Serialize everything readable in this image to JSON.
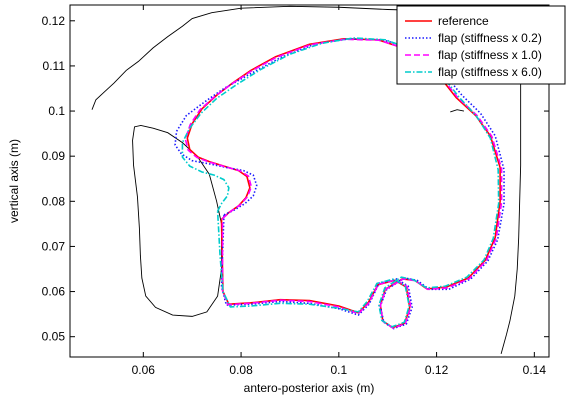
{
  "chart_data": {
    "type": "line",
    "xlabel": "antero-posterior axis (m)",
    "ylabel": "vertical axis (m)",
    "xlim": [
      0.045,
      0.143
    ],
    "ylim": [
      0.0455,
      0.1235
    ],
    "xticks": [
      0.06,
      0.08,
      0.1,
      0.12,
      0.14
    ],
    "yticks": [
      0.05,
      0.06,
      0.07,
      0.08,
      0.09,
      0.1,
      0.11,
      0.12
    ],
    "xtick_labels": [
      "0.06",
      "0.08",
      "0.1",
      "0.12",
      "0.14"
    ],
    "ytick_labels": [
      "0.05",
      "0.06",
      "0.07",
      "0.08",
      "0.09",
      "0.1",
      "0.11",
      "0.12"
    ],
    "grid": false,
    "legend_position": "top-right",
    "boundary": {
      "color": "#000000",
      "outer": [
        [
          0.0495,
          0.1003
        ],
        [
          0.0503,
          0.1025
        ],
        [
          0.052,
          0.1042
        ],
        [
          0.054,
          0.1062
        ],
        [
          0.0565,
          0.109
        ],
        [
          0.059,
          0.111
        ],
        [
          0.062,
          0.114
        ],
        [
          0.065,
          0.1165
        ],
        [
          0.068,
          0.1188
        ],
        [
          0.07,
          0.1205
        ],
        [
          0.074,
          0.1218
        ],
        [
          0.08,
          0.1228
        ],
        [
          0.09,
          0.1232
        ],
        [
          0.1,
          0.123
        ],
        [
          0.11,
          0.1225
        ],
        [
          0.12,
          0.1222
        ],
        [
          0.124,
          0.122
        ],
        [
          0.1255,
          0.1205
        ],
        [
          0.127,
          0.1175
        ],
        [
          0.1285,
          0.1145
        ],
        [
          0.131,
          0.1125
        ],
        [
          0.134,
          0.1115
        ],
        [
          0.1372,
          0.1105
        ],
        [
          0.1372,
          0.104
        ],
        [
          0.1372,
          0.096
        ],
        [
          0.1372,
          0.088
        ],
        [
          0.137,
          0.08
        ],
        [
          0.1368,
          0.072
        ],
        [
          0.1365,
          0.065
        ],
        [
          0.136,
          0.059
        ],
        [
          0.135,
          0.0535
        ],
        [
          0.1343,
          0.0505
        ],
        [
          0.1332,
          0.0462
        ]
      ],
      "inner": [
        [
          0.076,
          0.075
        ],
        [
          0.075,
          0.08
        ],
        [
          0.0735,
          0.086
        ],
        [
          0.071,
          0.09
        ],
        [
          0.068,
          0.093
        ],
        [
          0.065,
          0.0952
        ],
        [
          0.062,
          0.0962
        ],
        [
          0.0595,
          0.0968
        ],
        [
          0.0582,
          0.0965
        ],
        [
          0.0578,
          0.0935
        ],
        [
          0.058,
          0.088
        ],
        [
          0.0588,
          0.081
        ],
        [
          0.0592,
          0.074
        ],
        [
          0.0594,
          0.068
        ],
        [
          0.0597,
          0.063
        ],
        [
          0.0605,
          0.059
        ],
        [
          0.0625,
          0.0565
        ],
        [
          0.066,
          0.0548
        ],
        [
          0.07,
          0.0545
        ],
        [
          0.073,
          0.0555
        ],
        [
          0.0752,
          0.059
        ],
        [
          0.076,
          0.065
        ],
        [
          0.076,
          0.07
        ],
        [
          0.076,
          0.075
        ]
      ],
      "right_step": [
        [
          0.1228,
          0.0998
        ],
        [
          0.1242,
          0.1003
        ],
        [
          0.1256,
          0.1
        ]
      ]
    },
    "series": [
      {
        "name": "reference",
        "color": "#ff0000",
        "style": "solid",
        "points": [
          [
            0.076,
            0.076
          ],
          [
            0.0775,
            0.0775
          ],
          [
            0.0795,
            0.079
          ],
          [
            0.081,
            0.0808
          ],
          [
            0.0818,
            0.083
          ],
          [
            0.0812,
            0.0855
          ],
          [
            0.0795,
            0.0868
          ],
          [
            0.0765,
            0.0878
          ],
          [
            0.0735,
            0.0888
          ],
          [
            0.0712,
            0.0898
          ],
          [
            0.0695,
            0.0915
          ],
          [
            0.069,
            0.094
          ],
          [
            0.07,
            0.0972
          ],
          [
            0.072,
            0.1005
          ],
          [
            0.075,
            0.1035
          ],
          [
            0.078,
            0.106
          ],
          [
            0.082,
            0.109
          ],
          [
            0.087,
            0.112
          ],
          [
            0.094,
            0.1148
          ],
          [
            0.101,
            0.116
          ],
          [
            0.108,
            0.1158
          ],
          [
            0.115,
            0.1133
          ],
          [
            0.12,
            0.1085
          ],
          [
            0.124,
            0.103
          ],
          [
            0.128,
            0.099
          ],
          [
            0.131,
            0.0945
          ],
          [
            0.133,
            0.0875
          ],
          [
            0.133,
            0.08
          ],
          [
            0.132,
            0.072
          ],
          [
            0.13,
            0.067
          ],
          [
            0.1265,
            0.063
          ],
          [
            0.122,
            0.061
          ],
          [
            0.118,
            0.0606
          ],
          [
            0.1155,
            0.0625
          ],
          [
            0.113,
            0.0628
          ],
          [
            0.1095,
            0.0605
          ],
          [
            0.1085,
            0.057
          ],
          [
            0.109,
            0.0535
          ],
          [
            0.111,
            0.052
          ],
          [
            0.1135,
            0.053
          ],
          [
            0.1145,
            0.0565
          ],
          [
            0.1138,
            0.061
          ],
          [
            0.1115,
            0.0625
          ],
          [
            0.108,
            0.0615
          ],
          [
            0.106,
            0.0575
          ],
          [
            0.104,
            0.0553
          ],
          [
            0.1,
            0.0568
          ],
          [
            0.094,
            0.058
          ],
          [
            0.088,
            0.0582
          ],
          [
            0.082,
            0.0575
          ],
          [
            0.0775,
            0.0572
          ],
          [
            0.0763,
            0.06
          ],
          [
            0.0762,
            0.065
          ],
          [
            0.0761,
            0.07
          ],
          [
            0.076,
            0.076
          ]
        ]
      },
      {
        "name": "flap (stiffness x 0.2)",
        "color": "#1a1aff",
        "style": "dotted",
        "points": [
          [
            0.0765,
            0.077
          ],
          [
            0.0785,
            0.078
          ],
          [
            0.0808,
            0.0795
          ],
          [
            0.0825,
            0.0812
          ],
          [
            0.0832,
            0.0835
          ],
          [
            0.0825,
            0.0858
          ],
          [
            0.0805,
            0.0868
          ],
          [
            0.077,
            0.0875
          ],
          [
            0.0735,
            0.0883
          ],
          [
            0.07,
            0.089
          ],
          [
            0.0678,
            0.0905
          ],
          [
            0.0665,
            0.0925
          ],
          [
            0.0668,
            0.0955
          ],
          [
            0.0688,
            0.099
          ],
          [
            0.0725,
            0.102
          ],
          [
            0.0765,
            0.105
          ],
          [
            0.082,
            0.1083
          ],
          [
            0.088,
            0.1118
          ],
          [
            0.095,
            0.1148
          ],
          [
            0.102,
            0.116
          ],
          [
            0.109,
            0.1158
          ],
          [
            0.116,
            0.1135
          ],
          [
            0.121,
            0.109
          ],
          [
            0.1252,
            0.1035
          ],
          [
            0.129,
            0.0995
          ],
          [
            0.132,
            0.0945
          ],
          [
            0.1338,
            0.087
          ],
          [
            0.1338,
            0.0795
          ],
          [
            0.1325,
            0.0715
          ],
          [
            0.1305,
            0.0668
          ],
          [
            0.127,
            0.0628
          ],
          [
            0.1225,
            0.0605
          ],
          [
            0.1185,
            0.0605
          ],
          [
            0.116,
            0.0625
          ],
          [
            0.1135,
            0.063
          ],
          [
            0.1098,
            0.0605
          ],
          [
            0.1085,
            0.0568
          ],
          [
            0.1092,
            0.0532
          ],
          [
            0.1112,
            0.0518
          ],
          [
            0.1138,
            0.0528
          ],
          [
            0.115,
            0.0565
          ],
          [
            0.1142,
            0.0612
          ],
          [
            0.1118,
            0.0628
          ],
          [
            0.1082,
            0.0618
          ],
          [
            0.1062,
            0.0572
          ],
          [
            0.104,
            0.0548
          ],
          [
            0.1,
            0.0562
          ],
          [
            0.094,
            0.0574
          ],
          [
            0.088,
            0.0578
          ],
          [
            0.082,
            0.0572
          ],
          [
            0.077,
            0.057
          ],
          [
            0.076,
            0.061
          ],
          [
            0.0762,
            0.068
          ],
          [
            0.0765,
            0.077
          ]
        ]
      },
      {
        "name": "flap (stiffness x 1.0)",
        "color": "#ff00ff",
        "style": "dashed",
        "points": [
          [
            0.0762,
            0.0762
          ],
          [
            0.0778,
            0.0777
          ],
          [
            0.0798,
            0.0792
          ],
          [
            0.0813,
            0.081
          ],
          [
            0.0821,
            0.0832
          ],
          [
            0.0815,
            0.0856
          ],
          [
            0.0797,
            0.0868
          ],
          [
            0.0766,
            0.0877
          ],
          [
            0.0735,
            0.0887
          ],
          [
            0.071,
            0.0897
          ],
          [
            0.0692,
            0.0913
          ],
          [
            0.0686,
            0.0938
          ],
          [
            0.0696,
            0.097
          ],
          [
            0.0716,
            0.1003
          ],
          [
            0.0747,
            0.1033
          ],
          [
            0.0778,
            0.1058
          ],
          [
            0.082,
            0.1088
          ],
          [
            0.0872,
            0.1119
          ],
          [
            0.0942,
            0.1147
          ],
          [
            0.1012,
            0.1159
          ],
          [
            0.1082,
            0.1157
          ],
          [
            0.1152,
            0.1133
          ],
          [
            0.1203,
            0.1085
          ],
          [
            0.1243,
            0.103
          ],
          [
            0.1283,
            0.099
          ],
          [
            0.1313,
            0.0944
          ],
          [
            0.1333,
            0.0873
          ],
          [
            0.1333,
            0.0798
          ],
          [
            0.1322,
            0.0718
          ],
          [
            0.1302,
            0.0669
          ],
          [
            0.1267,
            0.0629
          ],
          [
            0.1222,
            0.0608
          ],
          [
            0.1182,
            0.0605
          ],
          [
            0.1157,
            0.0624
          ],
          [
            0.1132,
            0.0628
          ],
          [
            0.1096,
            0.0605
          ],
          [
            0.1085,
            0.0569
          ],
          [
            0.109,
            0.0534
          ],
          [
            0.1111,
            0.0519
          ],
          [
            0.1136,
            0.0529
          ],
          [
            0.1147,
            0.0565
          ],
          [
            0.114,
            0.0611
          ],
          [
            0.1116,
            0.0626
          ],
          [
            0.1081,
            0.0616
          ],
          [
            0.1061,
            0.0574
          ],
          [
            0.104,
            0.0551
          ],
          [
            0.1,
            0.0566
          ],
          [
            0.094,
            0.0578
          ],
          [
            0.088,
            0.0581
          ],
          [
            0.082,
            0.0574
          ],
          [
            0.0773,
            0.0571
          ],
          [
            0.0762,
            0.0602
          ],
          [
            0.0762,
            0.066
          ],
          [
            0.0762,
            0.0762
          ]
        ]
      },
      {
        "name": "flap (stiffness x 6.0)",
        "color": "#00cccc",
        "style": "dashdot",
        "points": [
          [
            0.0752,
            0.0778
          ],
          [
            0.076,
            0.0795
          ],
          [
            0.0772,
            0.0812
          ],
          [
            0.0775,
            0.083
          ],
          [
            0.0765,
            0.0848
          ],
          [
            0.0745,
            0.0858
          ],
          [
            0.072,
            0.0865
          ],
          [
            0.0695,
            0.0878
          ],
          [
            0.068,
            0.0898
          ],
          [
            0.068,
            0.093
          ],
          [
            0.0695,
            0.0962
          ],
          [
            0.0718,
            0.0995
          ],
          [
            0.075,
            0.1028
          ],
          [
            0.079,
            0.1058
          ],
          [
            0.084,
            0.1092
          ],
          [
            0.09,
            0.1126
          ],
          [
            0.0965,
            0.115
          ],
          [
            0.103,
            0.1162
          ],
          [
            0.1095,
            0.1158
          ],
          [
            0.116,
            0.1133
          ],
          [
            0.1205,
            0.1088
          ],
          [
            0.1245,
            0.1032
          ],
          [
            0.1282,
            0.0988
          ],
          [
            0.131,
            0.094
          ],
          [
            0.1326,
            0.087
          ],
          [
            0.1327,
            0.0795
          ],
          [
            0.1316,
            0.0718
          ],
          [
            0.1297,
            0.067
          ],
          [
            0.1262,
            0.0632
          ],
          [
            0.1218,
            0.0612
          ],
          [
            0.118,
            0.0608
          ],
          [
            0.1153,
            0.0626
          ],
          [
            0.1128,
            0.0632
          ],
          [
            0.1094,
            0.0608
          ],
          [
            0.1082,
            0.057
          ],
          [
            0.1088,
            0.0536
          ],
          [
            0.1109,
            0.0522
          ],
          [
            0.1134,
            0.0532
          ],
          [
            0.1144,
            0.0568
          ],
          [
            0.1136,
            0.0612
          ],
          [
            0.1113,
            0.0628
          ],
          [
            0.1078,
            0.0618
          ],
          [
            0.1058,
            0.0578
          ],
          [
            0.104,
            0.0555
          ],
          [
            0.1,
            0.0563
          ],
          [
            0.094,
            0.0572
          ],
          [
            0.088,
            0.0574
          ],
          [
            0.082,
            0.0568
          ],
          [
            0.0778,
            0.0566
          ],
          [
            0.0763,
            0.06
          ],
          [
            0.0757,
            0.068
          ],
          [
            0.0752,
            0.0778
          ]
        ]
      }
    ]
  }
}
